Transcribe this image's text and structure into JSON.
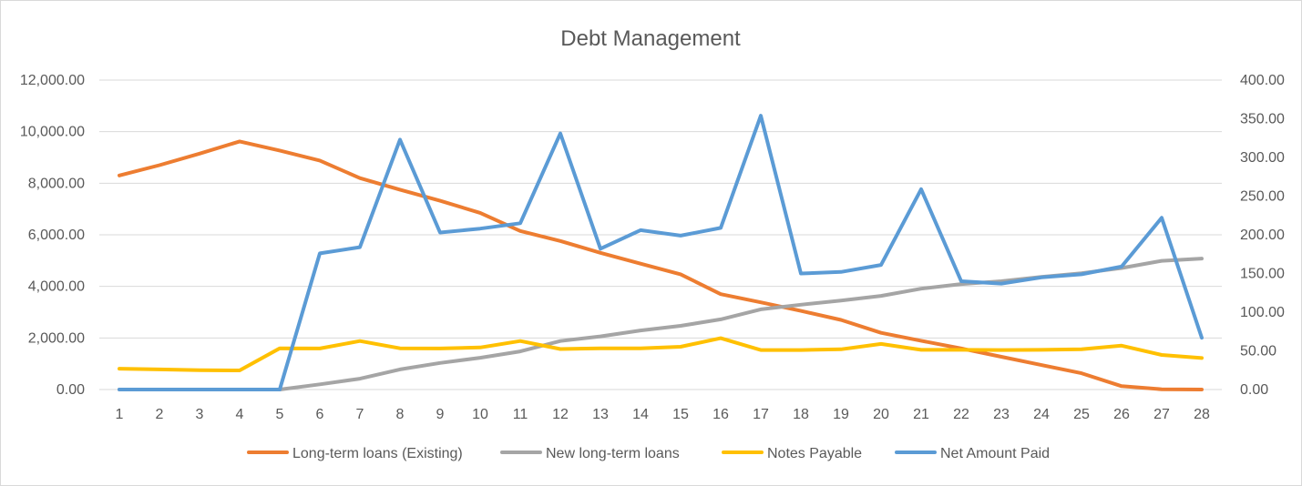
{
  "chart_data": {
    "type": "line",
    "title": "Debt Management",
    "categories": [
      1,
      2,
      3,
      4,
      5,
      6,
      7,
      8,
      9,
      10,
      11,
      12,
      13,
      14,
      15,
      16,
      17,
      18,
      19,
      20,
      21,
      22,
      23,
      24,
      25,
      26,
      27,
      28
    ],
    "primary_axis": {
      "ylim": [
        0,
        12000
      ],
      "ticks": [
        "0.00",
        "2,000.00",
        "4,000.00",
        "6,000.00",
        "8,000.00",
        "10,000.00",
        "12,000.00"
      ]
    },
    "secondary_axis": {
      "ylim": [
        0,
        400
      ],
      "ticks": [
        "0.00",
        "50.00",
        "100.00",
        "150.00",
        "200.00",
        "250.00",
        "300.00",
        "350.00",
        "400.00"
      ]
    },
    "grid": true,
    "legend_position": "bottom",
    "series": [
      {
        "name": "Long-term loans (Existing)",
        "color": "#ED7D31",
        "axis": "primary",
        "values": [
          8300,
          8700,
          9150,
          9620,
          9270,
          8880,
          8200,
          7750,
          7320,
          6850,
          6150,
          5760,
          5300,
          4880,
          4470,
          3700,
          3380,
          3050,
          2700,
          2200,
          1890,
          1590,
          1270,
          950,
          630,
          130,
          10,
          0
        ]
      },
      {
        "name": "New long-term loans",
        "color": "#A5A5A5",
        "axis": "primary",
        "values": [
          0,
          0,
          0,
          0,
          0,
          200,
          420,
          780,
          1030,
          1230,
          1480,
          1880,
          2060,
          2290,
          2470,
          2720,
          3110,
          3290,
          3450,
          3630,
          3910,
          4090,
          4200,
          4370,
          4510,
          4710,
          4990,
          5080
        ]
      },
      {
        "name": "Notes Payable",
        "color": "#FFC000",
        "axis": "primary",
        "values": [
          810,
          780,
          750,
          740,
          1600,
          1590,
          1880,
          1600,
          1590,
          1630,
          1880,
          1570,
          1600,
          1600,
          1660,
          1990,
          1530,
          1530,
          1560,
          1770,
          1540,
          1540,
          1530,
          1540,
          1560,
          1700,
          1340,
          1220
        ]
      },
      {
        "name": "Net Amount Paid",
        "color": "#5B9BD5",
        "axis": "secondary",
        "values": [
          0,
          0,
          0,
          0,
          0,
          176,
          184,
          323,
          203,
          208,
          215,
          331,
          182,
          206,
          199,
          209,
          354,
          150,
          152,
          161,
          259,
          140,
          137,
          145,
          149,
          159,
          222,
          67
        ]
      }
    ]
  }
}
